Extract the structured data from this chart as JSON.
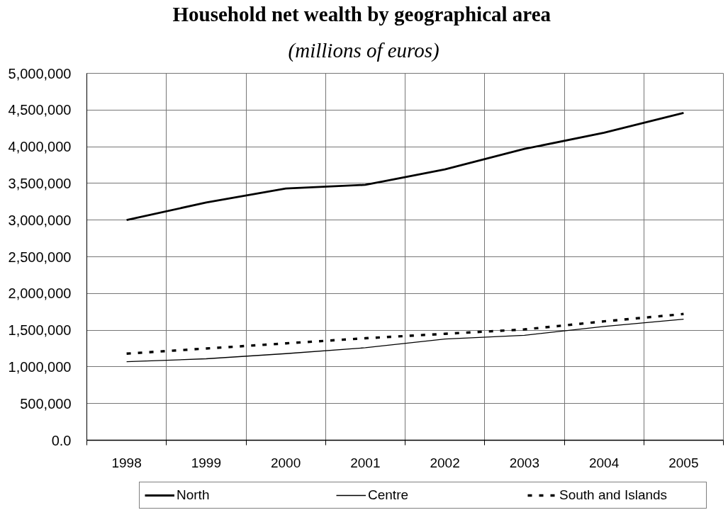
{
  "chart_data": {
    "type": "line",
    "title": "Household net wealth by geographical area",
    "subtitle": "(millions of euros)",
    "categories": [
      "1998",
      "1999",
      "2000",
      "2001",
      "2002",
      "2003",
      "2004",
      "2005"
    ],
    "series": [
      {
        "name": "North",
        "color": "#000000",
        "line_style": "solid",
        "values": [
          3000000,
          3240000,
          3430000,
          3480000,
          3690000,
          3970000,
          4190000,
          4460000
        ]
      },
      {
        "name": "Centre",
        "color": "#000000",
        "line_style": "solid",
        "values": [
          1070000,
          1110000,
          1180000,
          1260000,
          1380000,
          1430000,
          1550000,
          1650000
        ]
      },
      {
        "name": "South and Islands",
        "color": "#000000",
        "line_style": "dashed",
        "values": [
          1180000,
          1250000,
          1320000,
          1390000,
          1450000,
          1510000,
          1620000,
          1720000
        ]
      }
    ],
    "ylim": [
      0,
      5000000
    ],
    "yticks": [
      {
        "value": 0,
        "label": "0.0"
      },
      {
        "value": 500000,
        "label": "500,000"
      },
      {
        "value": 1000000,
        "label": "1,000,000"
      },
      {
        "value": 1500000,
        "label": "1,500,000"
      },
      {
        "value": 2000000,
        "label": "2,000,000"
      },
      {
        "value": 2500000,
        "label": "2,500,000"
      },
      {
        "value": 3000000,
        "label": "3,000,000"
      },
      {
        "value": 3500000,
        "label": "3,500,000"
      },
      {
        "value": 4000000,
        "label": "4,000,000"
      },
      {
        "value": 4500000,
        "label": "4,500,000"
      },
      {
        "value": 5000000,
        "label": "5,000,000"
      }
    ],
    "grid": true,
    "legend": "bottom"
  }
}
